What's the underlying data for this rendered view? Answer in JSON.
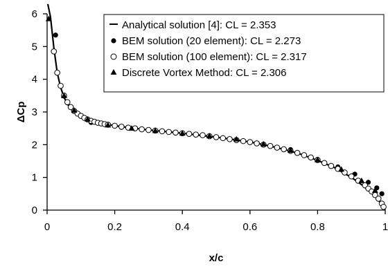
{
  "chart_data": {
    "type": "line",
    "title": "",
    "xlabel": "x/c",
    "ylabel": "ΔCp",
    "xlim": [
      0,
      1
    ],
    "ylim": [
      0,
      6
    ],
    "x_ticks": [
      "0",
      "0.2",
      "0.4",
      "0.6",
      "0.8",
      "1"
    ],
    "y_ticks": [
      "0",
      "1",
      "2",
      "3",
      "4",
      "5",
      "6"
    ],
    "grid": false,
    "legend_position": "top-right",
    "series": [
      {
        "name": "Analytical solution [4]: CL = 2.353",
        "marker": "line",
        "x": [
          0.002,
          0.01,
          0.02,
          0.03,
          0.04,
          0.05,
          0.06,
          0.07,
          0.08,
          0.09,
          0.1,
          0.12,
          0.15,
          0.2,
          0.25,
          0.3,
          0.35,
          0.4,
          0.45,
          0.5,
          0.55,
          0.6,
          0.65,
          0.7,
          0.75,
          0.8,
          0.85,
          0.9,
          0.93,
          0.95,
          0.97,
          0.98,
          0.99,
          0.995,
          1.0
        ],
        "y": [
          6.3,
          5.9,
          4.95,
          4.2,
          3.75,
          3.45,
          3.25,
          3.1,
          3.0,
          2.92,
          2.85,
          2.76,
          2.68,
          2.58,
          2.51,
          2.45,
          2.4,
          2.35,
          2.29,
          2.23,
          2.16,
          2.08,
          1.98,
          1.86,
          1.71,
          1.52,
          1.3,
          1.0,
          0.78,
          0.6,
          0.42,
          0.3,
          0.17,
          0.08,
          0.0
        ]
      },
      {
        "name": "BEM solution (20 element): CL = 2.273",
        "marker": "filled-circle",
        "x": [
          0.025,
          0.06,
          0.13,
          0.22,
          0.32,
          0.42,
          0.52,
          0.62,
          0.72,
          0.8,
          0.86,
          0.91,
          0.95,
          0.975,
          0.99
        ],
        "y": [
          5.35,
          3.28,
          2.68,
          2.53,
          2.42,
          2.32,
          2.21,
          2.05,
          1.85,
          1.55,
          1.32,
          1.1,
          0.85,
          0.68,
          0.5
        ]
      },
      {
        "name": "BEM solution (100 element): CL = 2.317",
        "marker": "open-circle",
        "x": [
          0.02,
          0.03,
          0.04,
          0.05,
          0.06,
          0.07,
          0.08,
          0.09,
          0.1,
          0.11,
          0.12,
          0.13,
          0.14,
          0.15,
          0.16,
          0.17,
          0.18,
          0.2,
          0.22,
          0.24,
          0.26,
          0.28,
          0.3,
          0.32,
          0.34,
          0.36,
          0.38,
          0.4,
          0.42,
          0.44,
          0.46,
          0.48,
          0.5,
          0.52,
          0.54,
          0.56,
          0.58,
          0.6,
          0.62,
          0.64,
          0.66,
          0.68,
          0.7,
          0.72,
          0.74,
          0.76,
          0.78,
          0.8,
          0.82,
          0.84,
          0.86,
          0.88,
          0.9,
          0.92,
          0.94,
          0.95,
          0.96,
          0.97,
          0.98,
          0.99,
          0.995
        ],
        "y": [
          4.85,
          4.2,
          3.8,
          3.5,
          3.3,
          3.15,
          3.03,
          2.95,
          2.88,
          2.82,
          2.77,
          2.73,
          2.7,
          2.67,
          2.65,
          2.63,
          2.61,
          2.58,
          2.55,
          2.52,
          2.5,
          2.47,
          2.45,
          2.43,
          2.41,
          2.39,
          2.37,
          2.35,
          2.33,
          2.31,
          2.29,
          2.26,
          2.23,
          2.2,
          2.17,
          2.14,
          2.11,
          2.08,
          2.04,
          2.0,
          1.96,
          1.91,
          1.86,
          1.81,
          1.75,
          1.68,
          1.61,
          1.53,
          1.44,
          1.35,
          1.26,
          1.15,
          1.03,
          0.9,
          0.76,
          0.66,
          0.57,
          0.46,
          0.35,
          0.2,
          0.1
        ]
      },
      {
        "name": "Discrete Vortex Method: CL = 2.306",
        "marker": "triangle",
        "x": [
          0.005,
          0.05,
          0.08,
          0.12,
          0.18,
          0.25,
          0.32,
          0.4,
          0.48,
          0.56,
          0.64,
          0.72,
          0.8,
          0.87,
          0.93,
          0.97
        ],
        "y": [
          5.85,
          3.5,
          3.05,
          2.78,
          2.6,
          2.5,
          2.43,
          2.35,
          2.27,
          2.17,
          2.02,
          1.83,
          1.54,
          1.25,
          0.9,
          0.6
        ]
      }
    ]
  }
}
